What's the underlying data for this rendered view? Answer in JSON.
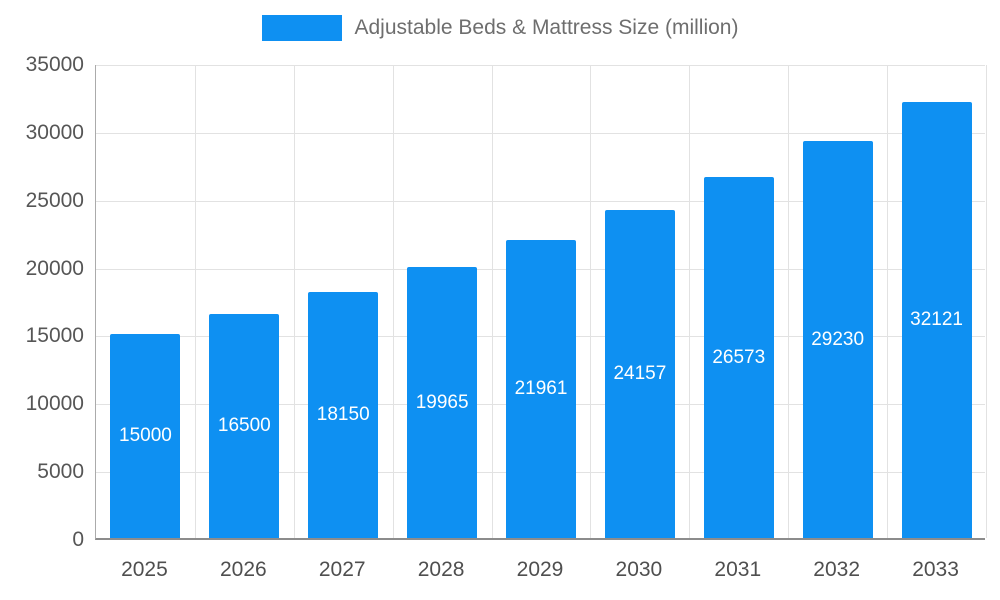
{
  "chart_data": {
    "type": "bar",
    "title": "Adjustable Beds & Mattress Size (million)",
    "legend": {
      "label": "Adjustable Beds & Mattress Size (million)",
      "position": "top",
      "swatch_color": "#0e90f2"
    },
    "categories": [
      "2025",
      "2026",
      "2027",
      "2028",
      "2029",
      "2030",
      "2031",
      "2032",
      "2033"
    ],
    "values": [
      15000,
      16500,
      18150,
      19965,
      21961,
      24157,
      26573,
      29230,
      32121
    ],
    "xlabel": "",
    "ylabel": "",
    "ylim": [
      0,
      35000
    ],
    "ytick_step": 5000,
    "yticks": [
      0,
      5000,
      10000,
      15000,
      20000,
      25000,
      30000,
      35000
    ],
    "grid": true,
    "bar_color": "#0e90f2",
    "value_label_color": "#ffffff",
    "value_labels_inside_bars": true
  }
}
